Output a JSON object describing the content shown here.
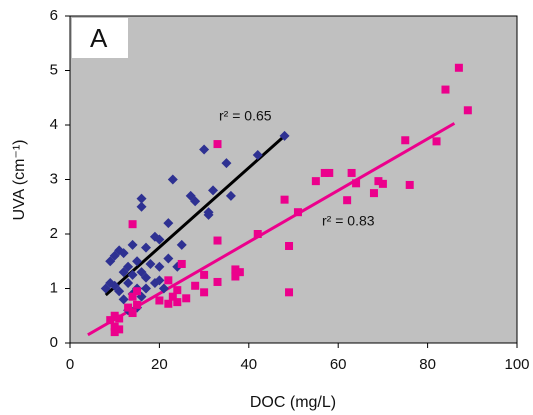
{
  "chart_data": {
    "type": "scatter",
    "panel_label": "A",
    "x_label": "DOC (mg/L)",
    "y_label": "UVA (cm⁻¹)",
    "xlim": [
      0,
      100
    ],
    "xticks": [
      0,
      20,
      40,
      60,
      80,
      100
    ],
    "ylim": [
      0,
      6
    ],
    "yticks": [
      0,
      1,
      2,
      3,
      4,
      5,
      6
    ],
    "background": "#c0c0c0",
    "series": [
      {
        "color": "#2e3192",
        "marker": "diamond",
        "x": [
          48,
          42,
          30,
          35,
          36,
          32,
          27,
          28,
          31,
          31,
          23,
          16,
          16,
          22,
          25,
          19,
          20,
          17,
          14,
          11,
          10,
          12,
          9,
          15,
          13,
          18,
          20,
          22,
          24,
          16,
          14,
          12,
          13,
          17,
          19,
          10,
          9,
          8,
          11,
          15,
          17,
          21,
          14,
          12,
          16,
          13,
          15,
          20
        ],
        "y": [
          3.8,
          3.45,
          3.55,
          3.3,
          2.7,
          2.8,
          2.7,
          2.6,
          2.4,
          2.35,
          3.0,
          2.65,
          2.5,
          2.2,
          1.8,
          1.95,
          1.9,
          1.75,
          1.8,
          1.7,
          1.6,
          1.65,
          1.5,
          1.5,
          1.4,
          1.45,
          1.4,
          1.55,
          1.4,
          1.3,
          1.25,
          1.3,
          1.1,
          1.2,
          1.1,
          1.05,
          1.1,
          1.0,
          0.95,
          1.0,
          1.0,
          1.0,
          0.9,
          0.8,
          0.85,
          0.6,
          0.65,
          1.15
        ]
      },
      {
        "color": "#ec008c",
        "marker": "square",
        "x": [
          87,
          84,
          89,
          75,
          82,
          58,
          63,
          57,
          55,
          64,
          70,
          69,
          76,
          68,
          62,
          48,
          51,
          42,
          33,
          33,
          49,
          14,
          37,
          38,
          37,
          25,
          30,
          33,
          22,
          28,
          49,
          30,
          24,
          26,
          23,
          20,
          22,
          24,
          15,
          14,
          13,
          10,
          11,
          9,
          10,
          11,
          10,
          14,
          15
        ],
        "y": [
          5.05,
          4.65,
          4.27,
          3.72,
          3.7,
          3.12,
          3.12,
          3.12,
          2.97,
          2.93,
          2.92,
          2.97,
          2.9,
          2.75,
          2.62,
          2.63,
          2.4,
          2.0,
          3.65,
          1.88,
          1.78,
          2.18,
          1.35,
          1.3,
          1.22,
          1.45,
          1.25,
          1.12,
          1.15,
          1.05,
          0.93,
          0.93,
          0.97,
          0.82,
          0.85,
          0.78,
          0.72,
          0.75,
          0.95,
          0.85,
          0.65,
          0.5,
          0.45,
          0.42,
          0.3,
          0.25,
          0.2,
          0.55,
          0.7
        ]
      }
    ],
    "trendlines": [
      {
        "color": "#000000",
        "x": [
          8,
          48
        ],
        "y": [
          0.88,
          3.8
        ],
        "label": "r² = 0.65"
      },
      {
        "color": "#ec008c",
        "x": [
          4,
          86
        ],
        "y": [
          0.15,
          4.03
        ],
        "label": "r² = 0.83"
      }
    ]
  }
}
